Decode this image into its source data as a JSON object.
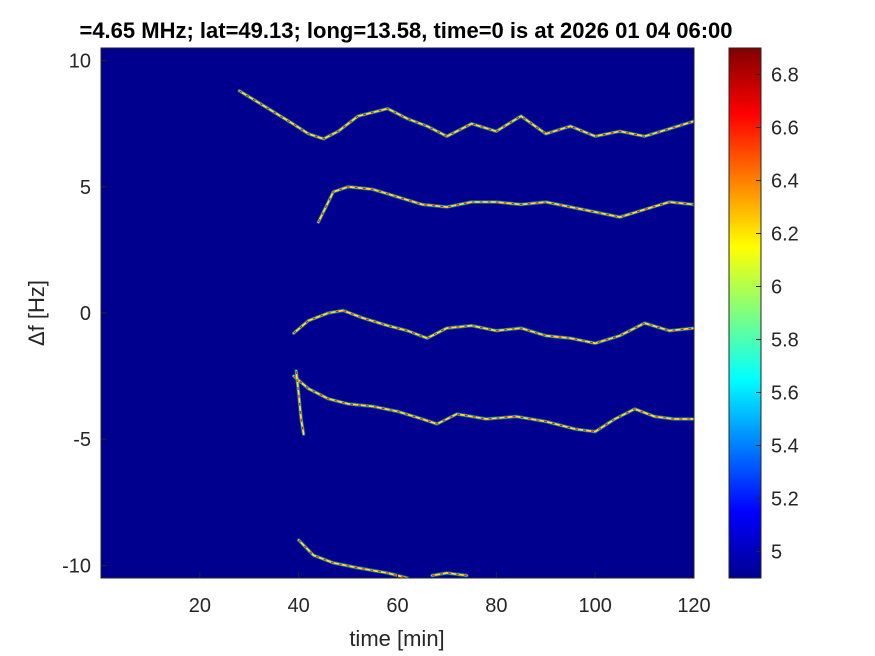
{
  "chart_data": {
    "type": "heatmap",
    "title": "=4.65 MHz;  lat=49.13; long=13.58, time=0 is at 2026 01 04 06:00",
    "xlabel": "time [min]",
    "ylabel": "Δf [Hz]",
    "xlim": [
      0,
      120
    ],
    "ylim": [
      -10.5,
      10.5
    ],
    "x_ticks": [
      "20",
      "40",
      "60",
      "80",
      "100",
      "120"
    ],
    "y_ticks": [
      "10",
      "5",
      "0",
      "-5",
      "-10"
    ],
    "colorbar": {
      "min": 4.9,
      "max": 6.9,
      "ticks": [
        "6.8",
        "6.6",
        "6.4",
        "6.2",
        "6",
        "5.8",
        "5.6",
        "5.4",
        "5.2",
        "5"
      ],
      "colormap": "jet"
    },
    "background_color": "#00008f",
    "traces": [
      {
        "x": [
          28,
          33,
          38,
          42,
          45,
          48,
          52,
          58,
          62,
          66,
          70,
          75,
          80,
          85,
          90,
          95,
          100,
          105,
          110,
          115,
          120
        ],
        "y": [
          8.8,
          8.2,
          7.6,
          7.1,
          6.9,
          7.2,
          7.8,
          8.1,
          7.7,
          7.4,
          7.0,
          7.5,
          7.2,
          7.8,
          7.1,
          7.4,
          7.0,
          7.2,
          7.0,
          7.3,
          7.6
        ]
      },
      {
        "x": [
          44,
          47,
          50,
          55,
          60,
          65,
          70,
          75,
          80,
          85,
          90,
          95,
          100,
          105,
          110,
          115,
          120
        ],
        "y": [
          3.6,
          4.8,
          5.0,
          4.9,
          4.6,
          4.3,
          4.2,
          4.4,
          4.4,
          4.3,
          4.4,
          4.2,
          4.0,
          3.8,
          4.1,
          4.4,
          4.3
        ]
      },
      {
        "x": [
          39,
          42,
          46,
          49,
          53,
          58,
          62,
          66,
          70,
          75,
          80,
          85,
          90,
          95,
          100,
          105,
          110,
          115,
          120
        ],
        "y": [
          -0.8,
          -0.3,
          0.0,
          0.1,
          -0.2,
          -0.5,
          -0.7,
          -1.0,
          -0.6,
          -0.5,
          -0.7,
          -0.6,
          -0.9,
          -1.0,
          -1.2,
          -0.9,
          -0.4,
          -0.7,
          -0.6
        ]
      },
      {
        "x": [
          39,
          42,
          46,
          50,
          55,
          60,
          65,
          68,
          72,
          78,
          84,
          90,
          96,
          100,
          104,
          108,
          112,
          116,
          120
        ],
        "y": [
          -2.5,
          -3.0,
          -3.4,
          -3.6,
          -3.7,
          -3.9,
          -4.2,
          -4.4,
          -4.0,
          -4.2,
          -4.1,
          -4.3,
          -4.6,
          -4.7,
          -4.2,
          -3.8,
          -4.1,
          -4.2,
          -4.2
        ]
      },
      {
        "x": [
          39.5,
          40,
          40.5,
          41
        ],
        "y": [
          -2.3,
          -3.2,
          -4.2,
          -4.8
        ]
      },
      {
        "x": [
          40,
          43,
          47,
          52,
          58,
          62
        ],
        "y": [
          -9.0,
          -9.6,
          -9.9,
          -10.1,
          -10.3,
          -10.5
        ]
      },
      {
        "x": [
          67,
          70,
          74
        ],
        "y": [
          -10.4,
          -10.3,
          -10.4
        ]
      }
    ]
  }
}
